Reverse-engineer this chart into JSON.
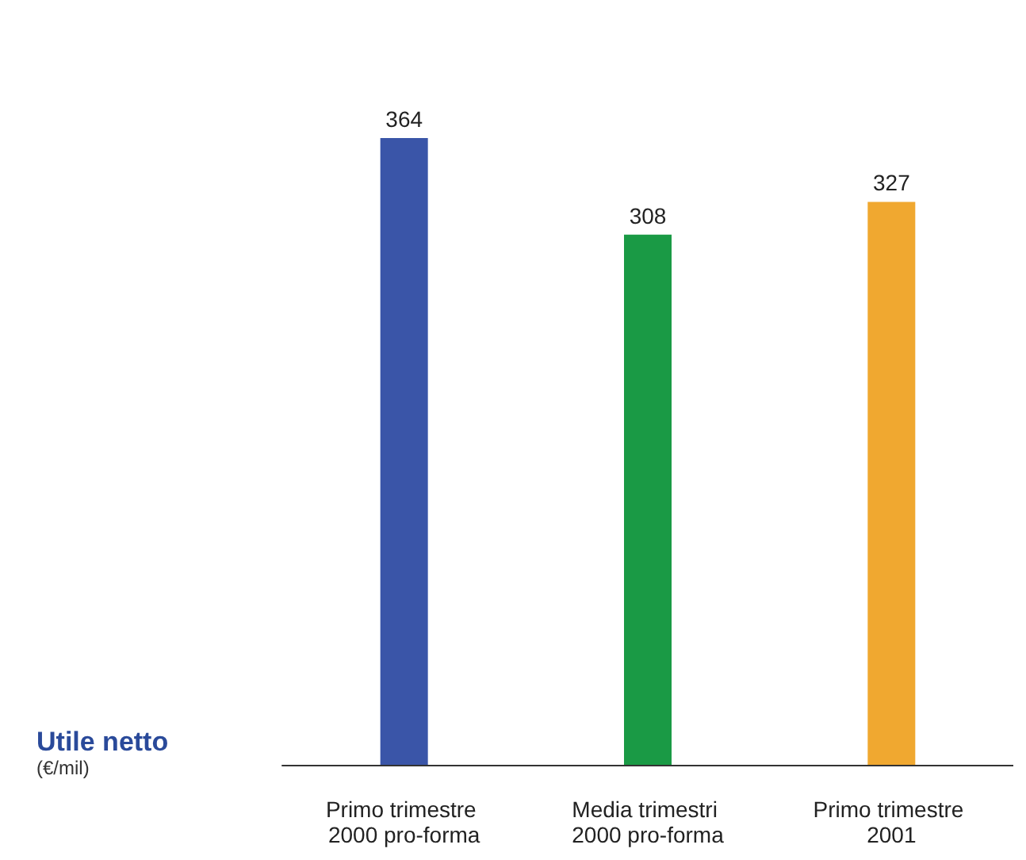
{
  "chart_data": {
    "type": "bar",
    "title": "Utile netto",
    "subtitle": "(€/mil)",
    "categories": [
      "Primo trimestre 2000 pro-forma",
      "Media trimestri 2000 pro-forma",
      "Primo trimestre 2001"
    ],
    "values": [
      364,
      308,
      327
    ],
    "colors": [
      "#3a55a8",
      "#1a9a45",
      "#f0a830"
    ],
    "data_labels": true
  }
}
